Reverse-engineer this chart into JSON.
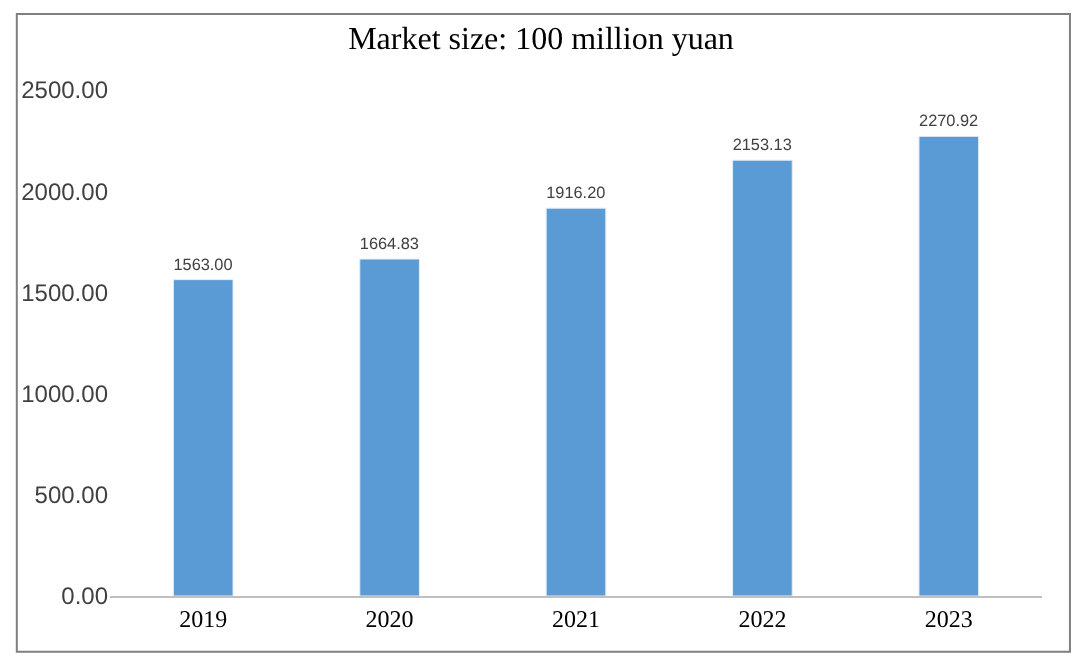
{
  "chart_data": {
    "type": "bar",
    "title": "Market size: 100 million yuan",
    "categories": [
      "2019",
      "2020",
      "2021",
      "2022",
      "2023"
    ],
    "values": [
      1563.0,
      1664.83,
      1916.2,
      2153.13,
      2270.92
    ],
    "value_labels": [
      "1563.00",
      "1664.83",
      "1916.20",
      "2153.13",
      "2270.92"
    ],
    "color": "#5b9bd5",
    "ylim": [
      0,
      2500
    ],
    "yticks": [
      {
        "value": 0,
        "label": "0.00"
      },
      {
        "value": 500,
        "label": "500.00"
      },
      {
        "value": 1000,
        "label": "1000.00"
      },
      {
        "value": 1500,
        "label": "1500.00"
      },
      {
        "value": 2000,
        "label": "2000.00"
      },
      {
        "value": 2500,
        "label": "2500.00"
      }
    ]
  }
}
